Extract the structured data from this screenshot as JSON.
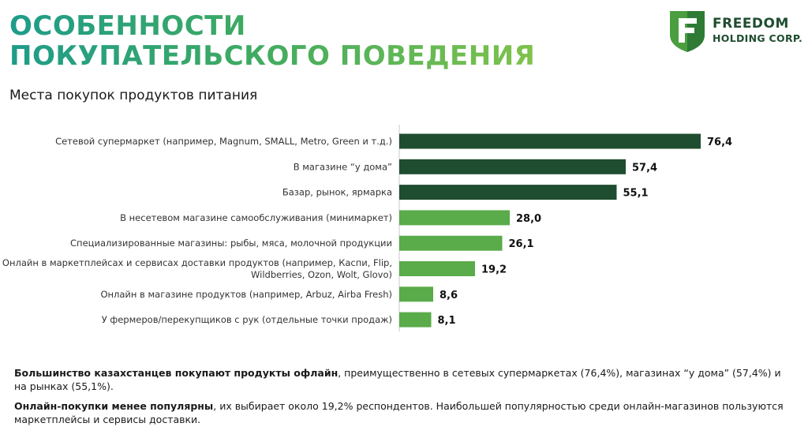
{
  "header": {
    "title_line1": "ОСОБЕННОСТИ",
    "title_line2": "ПОКУПАТЕЛЬСКОГО ПОВЕДЕНИЯ"
  },
  "logo": {
    "line1": "FREEDOM",
    "line2": "HOLDING CORP.",
    "icon": "shield-f-icon"
  },
  "colors": {
    "dark_bar": "#1f4d2f",
    "light_bar": "#5aab4a",
    "title_gradient": [
      "#1e9c8a",
      "#7fc24b"
    ]
  },
  "chart_data": {
    "type": "bar",
    "orientation": "horizontal",
    "title": "Места покупок продуктов питания",
    "categories": [
      [
        "Сетевой супермаркет (например, Magnum, SMALL, Metro, Green и т.д.)"
      ],
      [
        "В магазине “у дома”"
      ],
      [
        "Базар, рынок, ярмарка"
      ],
      [
        "В несетевом магазине самообслуживания (минимаркет)"
      ],
      [
        "Специализированные магазины: рыбы, мяса, молочной продукции"
      ],
      [
        "Онлайн в маркетплейсах и сервисах доставки продуктов (например, Каспи, Flip,",
        "Wildberries, Ozon, Wolt, Glovo)"
      ],
      [
        "Онлайн в магазине продуктов (например, Arbuz, Airba Fresh)"
      ],
      [
        "У фермеров/перекупщиков с рук (отдельные точки продаж)"
      ]
    ],
    "values": [
      76.4,
      57.4,
      55.1,
      28.0,
      26.1,
      19.2,
      8.6,
      8.1
    ],
    "value_labels": [
      "76,4",
      "57,4",
      "55,1",
      "28,0",
      "26,1",
      "19,2",
      "8,6",
      "8,1"
    ],
    "bar_shades": [
      "dark",
      "dark",
      "dark",
      "light",
      "light",
      "light",
      "light",
      "light"
    ],
    "xlim": [
      0,
      80
    ],
    "grid": false,
    "legend": "none"
  },
  "notes": [
    {
      "bold": "Большинство казахстанцев покупают продукты офлайн",
      "text": ", преимущественно в сетевых супермаркетах (76,4%), магазинах “у дома” (57,4%) и на рынках (55,1%)."
    },
    {
      "bold": "Онлайн-покупки менее популярны",
      "text": ", их выбирает около 19,2% респондентов. Наибольшей популярностью среди онлайн-магазинов пользуются маркетплейсы и сервисы доставки."
    }
  ]
}
